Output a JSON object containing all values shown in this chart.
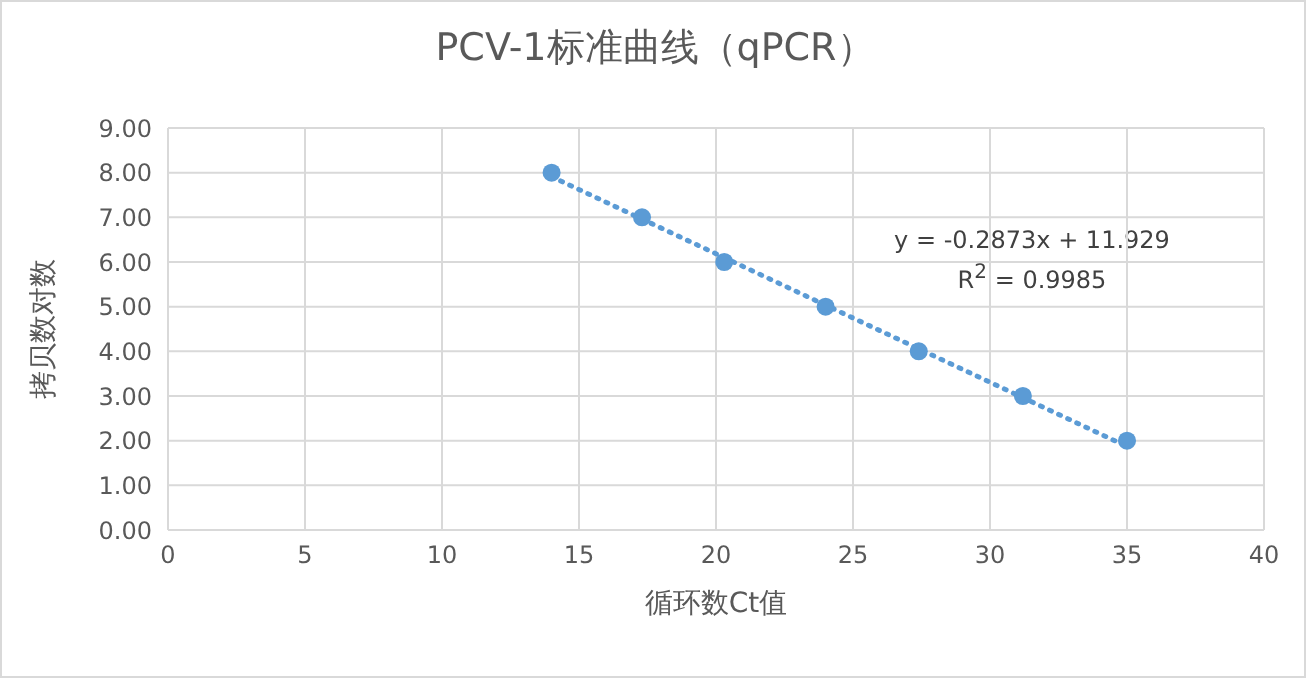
{
  "chart_data": {
    "type": "scatter",
    "title": "PCV-1标准曲线（qPCR）",
    "xlabel": "循环数Ct值",
    "ylabel": "拷贝数对数",
    "series": [
      {
        "color": "#5b9bd5",
        "x": [
          14.0,
          17.3,
          20.3,
          24.0,
          27.4,
          31.2,
          35.0
        ],
        "values": [
          8,
          7,
          6,
          5,
          4,
          3,
          2
        ],
        "marker": "circle"
      },
      {
        "type": "line",
        "color": "#5b9bd5",
        "x": [
          14,
          35
        ],
        "values": [
          7.91,
          1.87
        ],
        "line_style": "dotted",
        "marker": "none"
      }
    ],
    "annotations": [
      "y = -0.2873x + 11.929",
      "R$^{2}$ = 0.9985"
    ],
    "xlim": [
      0,
      40
    ],
    "xticks": [
      0,
      5,
      10,
      15,
      20,
      25,
      30,
      35,
      40
    ],
    "ylim": [
      0,
      9
    ],
    "yticks": [
      {
        "value": 0,
        "label": "0.00"
      },
      {
        "value": 1,
        "label": "1.00"
      },
      {
        "value": 2,
        "label": "2.00"
      },
      {
        "value": 3,
        "label": "3.00"
      },
      {
        "value": 4,
        "label": "4.00"
      },
      {
        "value": 5,
        "label": "5.00"
      },
      {
        "value": 6,
        "label": "6.00"
      },
      {
        "value": 7,
        "label": "7.00"
      },
      {
        "value": 8,
        "label": "8.00"
      },
      {
        "value": 9,
        "label": "9.00"
      }
    ],
    "grid": true
  }
}
